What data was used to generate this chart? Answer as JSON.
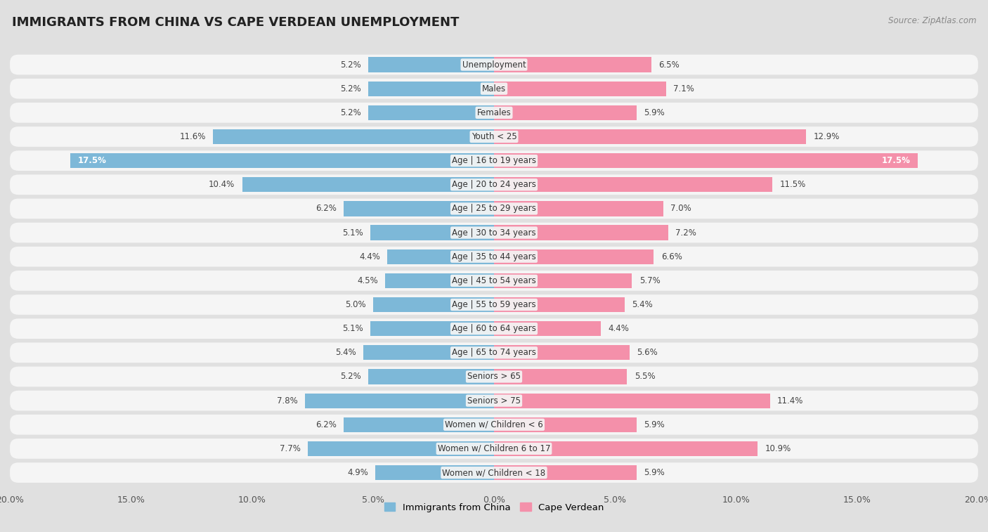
{
  "title": "IMMIGRANTS FROM CHINA VS CAPE VERDEAN UNEMPLOYMENT",
  "source": "Source: ZipAtlas.com",
  "categories": [
    "Unemployment",
    "Males",
    "Females",
    "Youth < 25",
    "Age | 16 to 19 years",
    "Age | 20 to 24 years",
    "Age | 25 to 29 years",
    "Age | 30 to 34 years",
    "Age | 35 to 44 years",
    "Age | 45 to 54 years",
    "Age | 55 to 59 years",
    "Age | 60 to 64 years",
    "Age | 65 to 74 years",
    "Seniors > 65",
    "Seniors > 75",
    "Women w/ Children < 6",
    "Women w/ Children 6 to 17",
    "Women w/ Children < 18"
  ],
  "china_values": [
    5.2,
    5.2,
    5.2,
    11.6,
    17.5,
    10.4,
    6.2,
    5.1,
    4.4,
    4.5,
    5.0,
    5.1,
    5.4,
    5.2,
    7.8,
    6.2,
    7.7,
    4.9
  ],
  "cape_verdean_values": [
    6.5,
    7.1,
    5.9,
    12.9,
    17.5,
    11.5,
    7.0,
    7.2,
    6.6,
    5.7,
    5.4,
    4.4,
    5.6,
    5.5,
    11.4,
    5.9,
    10.9,
    5.9
  ],
  "china_color": "#7db8d8",
  "cape_verdean_color": "#f490aa",
  "china_label": "Immigrants from China",
  "cape_verdean_label": "Cape Verdean",
  "xlim": 20.0,
  "background_color": "#e0e0e0",
  "row_bg_color": "#f5f5f5",
  "title_fontsize": 13,
  "label_fontsize": 9,
  "tick_fontsize": 9,
  "bar_height": 0.62,
  "value_threshold": 15.0
}
